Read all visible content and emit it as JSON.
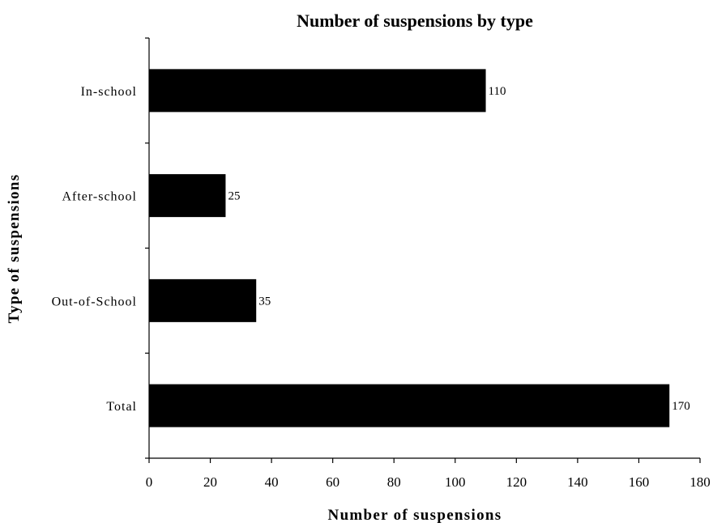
{
  "chart_data": {
    "type": "bar",
    "orientation": "horizontal",
    "title": "Number of suspensions by type",
    "xlabel": "Number of suspensions",
    "ylabel": "Type of suspensions",
    "categories": [
      "In-school",
      "After-school",
      "Out-of-School",
      "Total"
    ],
    "values": [
      110,
      25,
      35,
      170
    ],
    "xlim": [
      0,
      180
    ],
    "x_ticks": [
      0,
      20,
      40,
      60,
      80,
      100,
      120,
      140,
      160,
      180
    ],
    "grid": false,
    "legend": "none",
    "data_labels": true,
    "bar_color": "#000000"
  }
}
